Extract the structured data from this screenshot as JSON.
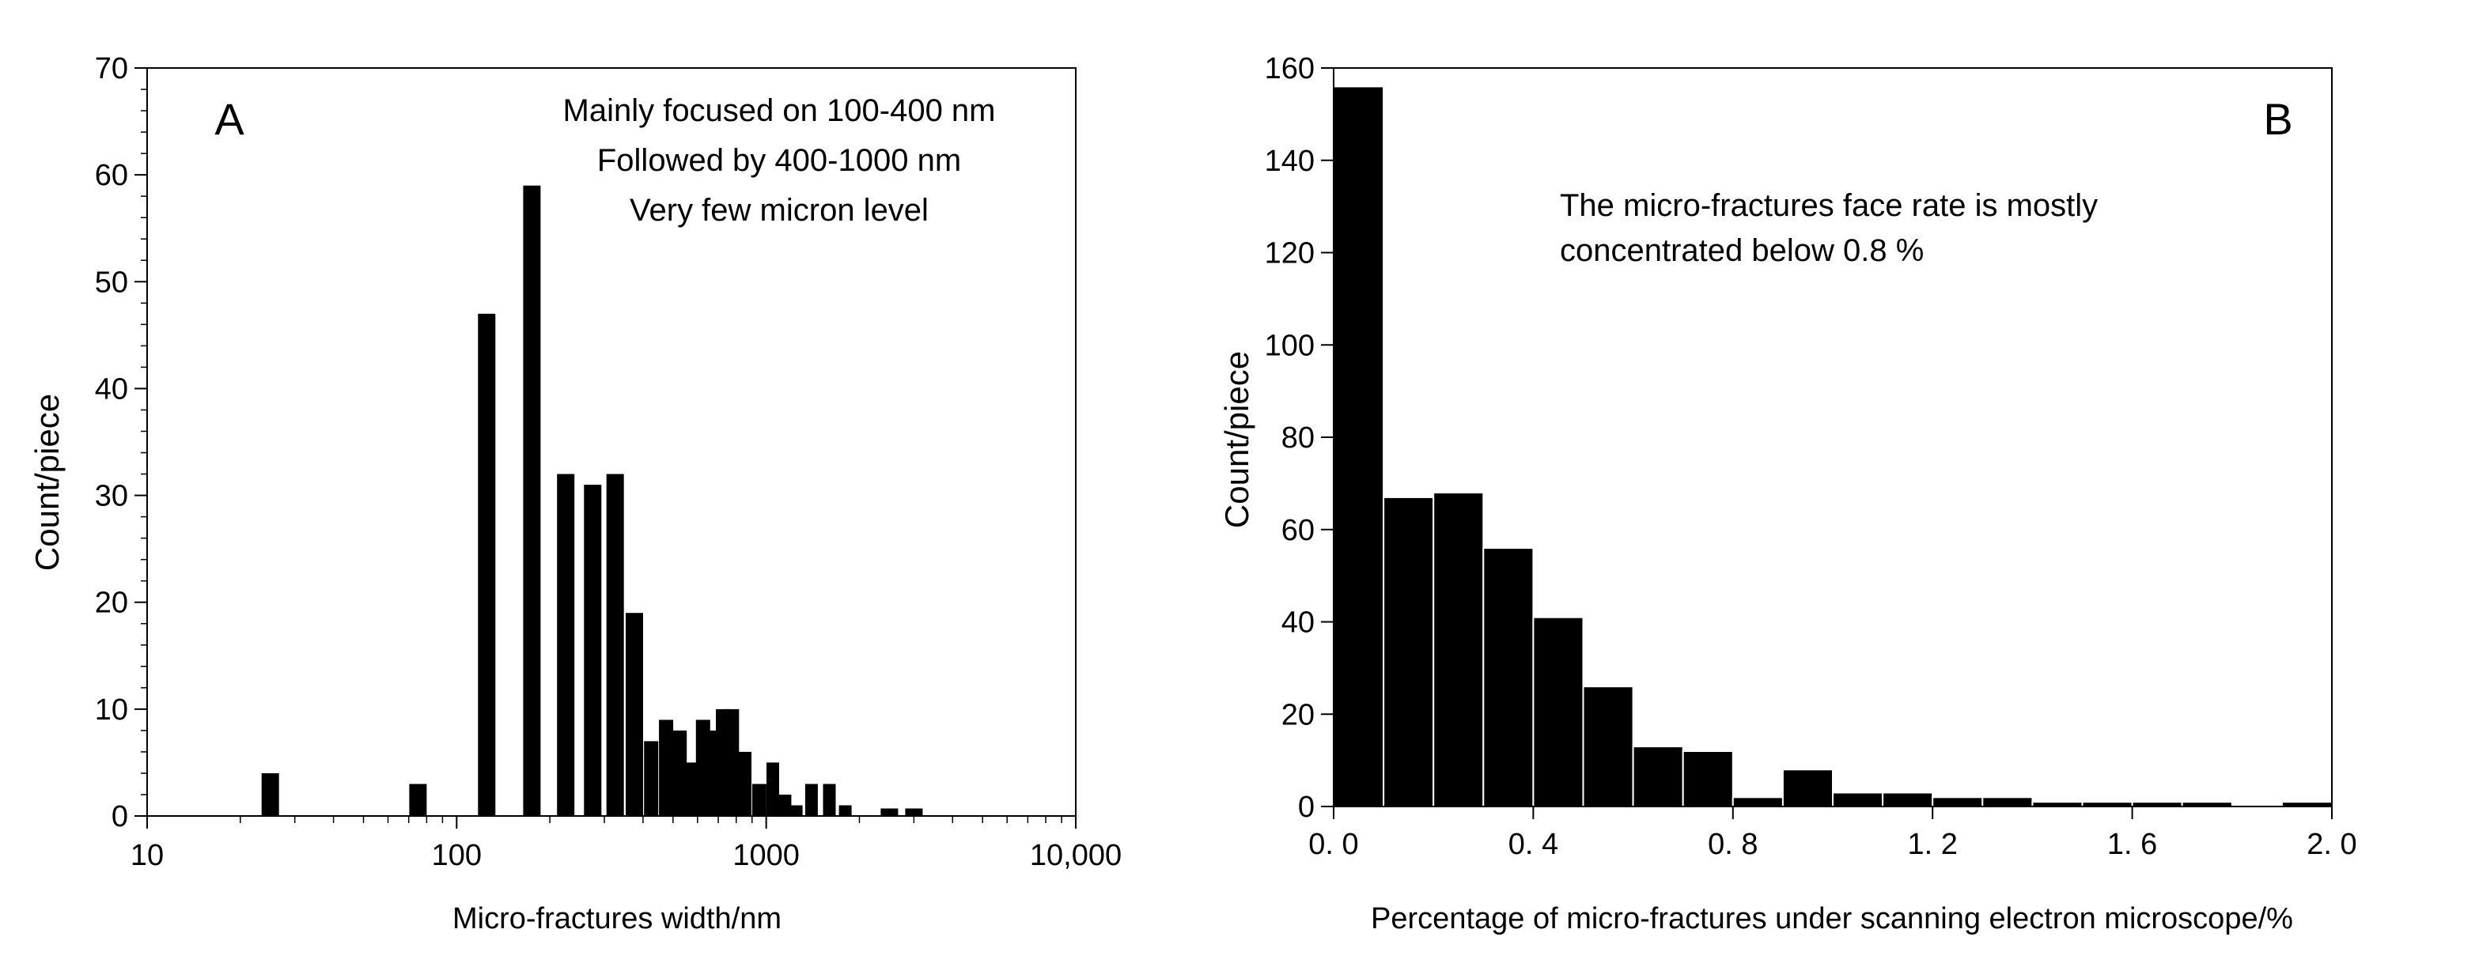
{
  "chart_data": [
    {
      "type": "bar",
      "panel_label": "A",
      "xscale": "log",
      "xlim": [
        10,
        10000
      ],
      "ylim": [
        0,
        70
      ],
      "xticks": [
        10,
        100,
        1000,
        10000
      ],
      "xtick_labels": [
        "10",
        "100",
        "1000",
        "10,000"
      ],
      "yticks": [
        0,
        10,
        20,
        30,
        40,
        50,
        60,
        70
      ],
      "ytick_labels": [
        "0",
        "10",
        "20",
        "30",
        "40",
        "50",
        "60",
        "70"
      ],
      "xlabel": "Micro-fractures width/nm",
      "ylabel": "Count/piece",
      "annotations": [
        "Mainly focused on 100-400 nm",
        "Followed by 400-1000 nm",
        "Very few micron level"
      ],
      "bar_color": "#000000",
      "bars": [
        {
          "x": 25,
          "value": 4
        },
        {
          "x": 75,
          "value": 3
        },
        {
          "x": 125,
          "value": 47
        },
        {
          "x": 175,
          "value": 59
        },
        {
          "x": 225,
          "value": 32
        },
        {
          "x": 275,
          "value": 31
        },
        {
          "x": 325,
          "value": 32
        },
        {
          "x": 375,
          "value": 19
        },
        {
          "x": 425,
          "value": 7
        },
        {
          "x": 475,
          "value": 9
        },
        {
          "x": 525,
          "value": 8
        },
        {
          "x": 575,
          "value": 5
        },
        {
          "x": 625,
          "value": 9
        },
        {
          "x": 675,
          "value": 8
        },
        {
          "x": 725,
          "value": 10
        },
        {
          "x": 775,
          "value": 10
        },
        {
          "x": 850,
          "value": 6
        },
        {
          "x": 950,
          "value": 3
        },
        {
          "x": 1050,
          "value": 5
        },
        {
          "x": 1150,
          "value": 2
        },
        {
          "x": 1250,
          "value": 1
        },
        {
          "x": 1400,
          "value": 3
        },
        {
          "x": 1600,
          "value": 3
        },
        {
          "x": 1800,
          "value": 1
        },
        {
          "x": 2500,
          "value": 0.7
        },
        {
          "x": 3000,
          "value": 0.7
        }
      ]
    },
    {
      "type": "bar",
      "panel_label": "B",
      "xscale": "linear",
      "xlim": [
        0,
        2.0
      ],
      "ylim": [
        0,
        160
      ],
      "xticks": [
        0,
        0.4,
        0.8,
        1.2,
        1.6,
        2.0
      ],
      "xtick_labels": [
        "0. 0",
        "0. 4",
        "0. 8",
        "1. 2",
        "1. 6",
        "2. 0"
      ],
      "yticks": [
        0,
        20,
        40,
        60,
        80,
        100,
        120,
        140,
        160
      ],
      "ytick_labels": [
        "0",
        "20",
        "40",
        "60",
        "80",
        "100",
        "120",
        "140",
        "160"
      ],
      "xlabel": "Percentage of micro-fractures under scanning electron microscope/%",
      "ylabel": "Count/piece",
      "annotations": [
        "The micro-fractures face rate is mostly",
        "concentrated below 0.8 %"
      ],
      "bar_color": "#000000",
      "bin_width": 0.1,
      "bin_starts": [
        0,
        0.1,
        0.2,
        0.3,
        0.4,
        0.5,
        0.6,
        0.7,
        0.8,
        0.9,
        1.0,
        1.1,
        1.2,
        1.3,
        1.4,
        1.5,
        1.6,
        1.7,
        1.8,
        1.9
      ],
      "values": [
        156,
        67,
        68,
        56,
        41,
        26,
        13,
        12,
        2,
        8,
        3,
        3,
        2,
        2,
        1,
        1,
        1,
        1,
        0,
        1
      ]
    }
  ]
}
